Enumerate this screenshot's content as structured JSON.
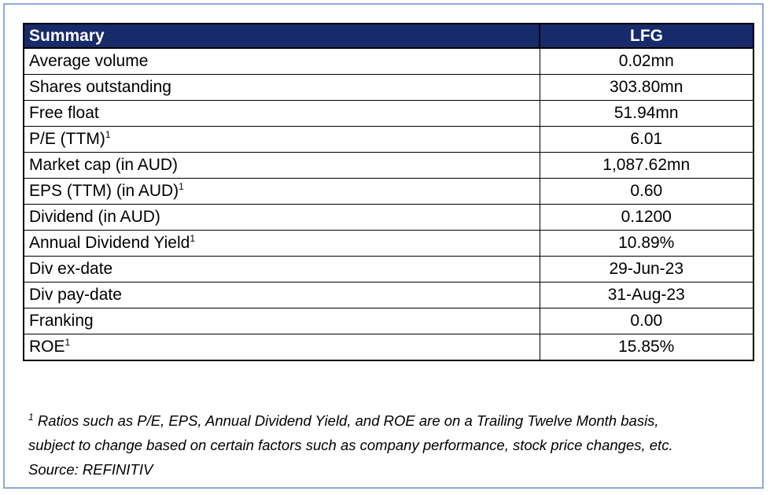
{
  "table": {
    "header": {
      "label": "Summary",
      "value": "LFG"
    },
    "rows": [
      {
        "label": "Average volume",
        "sup": "",
        "value": "0.02mn"
      },
      {
        "label": "Shares outstanding",
        "sup": "",
        "value": "303.80mn"
      },
      {
        "label": "Free float",
        "sup": "",
        "value": "51.94mn"
      },
      {
        "label": "P/E (TTM)",
        "sup": "1",
        "value": "6.01"
      },
      {
        "label": "Market cap (in AUD)",
        "sup": "",
        "value": "1,087.62mn"
      },
      {
        "label": "EPS (TTM) (in AUD)",
        "sup": "1",
        "value": "0.60"
      },
      {
        "label": "Dividend (in AUD)",
        "sup": "",
        "value": "0.1200"
      },
      {
        "label": "Annual Dividend Yield",
        "sup": "1",
        "value": "10.89%"
      },
      {
        "label": "Div ex-date",
        "sup": "",
        "value": "29-Jun-23"
      },
      {
        "label": "Div pay-date",
        "sup": "",
        "value": "31-Aug-23"
      },
      {
        "label": "Franking",
        "sup": "",
        "value": "0.00"
      },
      {
        "label": "ROE",
        "sup": "1",
        "value": "15.85%"
      }
    ]
  },
  "footnote": {
    "marker": "1",
    "line1": "Ratios such as P/E, EPS, Annual Dividend Yield, and ROE are on a Trailing Twelve Month basis,",
    "line2": "subject to change based on certain factors such as company performance, stock price changes, etc.",
    "source": "Source: REFINITIV"
  },
  "colors": {
    "header_bg": "#172a6a",
    "header_text": "#ffffff",
    "frame_border": "#8faadc"
  }
}
